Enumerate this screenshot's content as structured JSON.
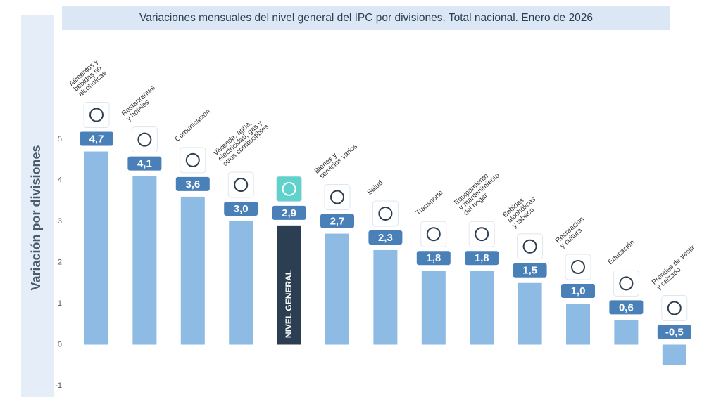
{
  "chart_data": {
    "type": "bar",
    "title": "Variaciones mensuales del nivel general del IPC por divisiones. Total nacional. Enero de 2026",
    "y_label": "Variación por divisiones",
    "categories": [
      "Alimentos y\nbebidas no\nalcohólicas",
      "Restaurantes\ny hoteles",
      "Comunicación",
      "Vivienda, agua,\nelectricidad, gas y\notros combustibles",
      "NIVEL GENERAL",
      "Bienes y\nservicios varios",
      "Salud",
      "Transporte",
      "Equipamiento\ny mantenimiento\ndel hogar",
      "Bebidas\nalcohólicas\ny tabaco",
      "Recreación\ny cultura",
      "Educación",
      "Prendas de vestir\ny calzado"
    ],
    "values": [
      4.7,
      4.1,
      3.6,
      3.0,
      2.9,
      2.7,
      2.3,
      1.8,
      1.8,
      1.5,
      1.0,
      0.6,
      -0.5
    ],
    "value_labels": [
      "4,7",
      "4,1",
      "3,6",
      "3,0",
      "2,9",
      "2,7",
      "2,3",
      "1,8",
      "1,8",
      "1,5",
      "1,0",
      "0,6",
      "-0,5"
    ],
    "colors": [
      "#8dbbe3",
      "#8dbbe3",
      "#8dbbe3",
      "#8dbbe3",
      "#2c3e52",
      "#8dbbe3",
      "#8dbbe3",
      "#8dbbe3",
      "#8dbbe3",
      "#8dbbe3",
      "#8dbbe3",
      "#8dbbe3",
      "#8dbbe3"
    ],
    "ylim": [
      -1,
      5
    ],
    "yticks": [
      -1,
      0,
      1,
      2,
      3,
      4,
      5
    ],
    "grid": false
  }
}
